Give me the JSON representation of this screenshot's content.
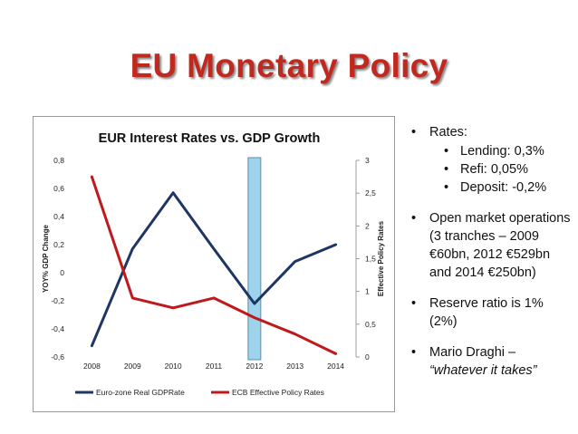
{
  "slide": {
    "title": "EU Monetary Policy"
  },
  "bullets": {
    "rates_label": "Rates:",
    "rates_items": [
      "Lending: 0,3%",
      "Refi: 0,05%",
      "Deposit: -0,2%"
    ],
    "open_market": "Open market operations (3 tranches – 2009 €60bn, 2012 €529bn and 2014 €250bn)",
    "reserve": "Reserve ratio is 1% (2%)",
    "draghi": "Mario Draghi –",
    "draghi_quote": "“whatever it takes”"
  },
  "colors": {
    "title": "#c0291f",
    "gdp": "#1f3564",
    "policy": "#c0191c",
    "highlight": "#7cc4e4"
  },
  "chart_data": {
    "type": "line",
    "title": "EUR Interest Rates vs. GDP Growth",
    "categories": [
      "2008",
      "2009",
      "2010",
      "2011",
      "2012",
      "2013",
      "2014"
    ],
    "series": [
      {
        "name": "Euro-zone Real GDPRate",
        "axis": "left",
        "values": [
          -0.52,
          0.17,
          0.57,
          0.17,
          -0.22,
          0.08,
          0.2
        ]
      },
      {
        "name": "ECB Effective Policy Rates",
        "axis": "right",
        "values": [
          2.75,
          0.9,
          0.75,
          0.9,
          0.6,
          0.35,
          0.05
        ]
      }
    ],
    "ylabel": "YOY% GDP Change",
    "y2label": "Effective Policy Rates",
    "ylim": [
      -0.6,
      0.8
    ],
    "y2lim": [
      0,
      3
    ],
    "yticks": [
      "0,8",
      "0,6",
      "0,4",
      "0,2",
      "0",
      "-0,2",
      "-0,4",
      "-0,6"
    ],
    "y2ticks": [
      "3",
      "2,5",
      "2",
      "1,5",
      "1",
      "0,5",
      "0"
    ],
    "highlight_category": "2012",
    "legend_position": "bottom"
  }
}
